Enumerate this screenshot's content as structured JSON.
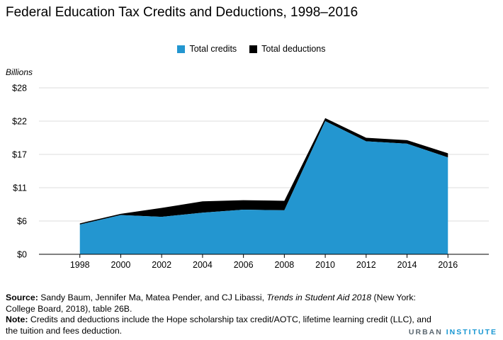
{
  "title": "Federal Education Tax Credits and Deductions, 1998–2016",
  "legend": {
    "credits_label": "Total credits",
    "deductions_label": "Total deductions"
  },
  "unit_label": "Billions",
  "footer": {
    "source_label": "Source:",
    "source_text_1": " Sandy Baum, Jennifer Ma, Matea Pender, and CJ Libassi, ",
    "source_italic": "Trends in Student Aid 2018",
    "source_text_2": " (New York: College Board, 2018), table 26B.",
    "note_label": "Note:",
    "note_text": " Credits and deductions include the Hope scholarship tax credit/AOTC, lifetime learning credit (LLC), and the tuition and fees deduction."
  },
  "brand": {
    "part1": "URBAN",
    "part2": " INSTITUTE"
  },
  "colors": {
    "credits": "#2396d0",
    "deductions": "#000000",
    "grid": "#dedede",
    "axis": "#000000"
  },
  "chart_data": {
    "type": "area",
    "stacked": true,
    "x": [
      1998,
      2000,
      2002,
      2004,
      2006,
      2008,
      2010,
      2012,
      2014,
      2016
    ],
    "series": [
      {
        "name": "Total credits",
        "values": [
          5.0,
          6.6,
          6.3,
          7.0,
          7.5,
          7.4,
          22.4,
          19.0,
          18.6,
          16.3
        ]
      },
      {
        "name": "Total deductions",
        "values": [
          0.2,
          0.2,
          1.5,
          1.9,
          1.6,
          1.6,
          0.5,
          0.6,
          0.6,
          0.7
        ]
      }
    ],
    "y_ticks": [
      "$0",
      "$6",
      "$11",
      "$17",
      "$22",
      "$28"
    ],
    "x_ticks": [
      "1998",
      "2000",
      "2002",
      "2004",
      "2006",
      "2008",
      "2010",
      "2012",
      "2014",
      "2016"
    ],
    "ylabel": "Billions",
    "ylim": [
      0,
      28
    ],
    "xlim": [
      1996,
      2018
    ],
    "grid": true,
    "legend_position": "top-center"
  }
}
